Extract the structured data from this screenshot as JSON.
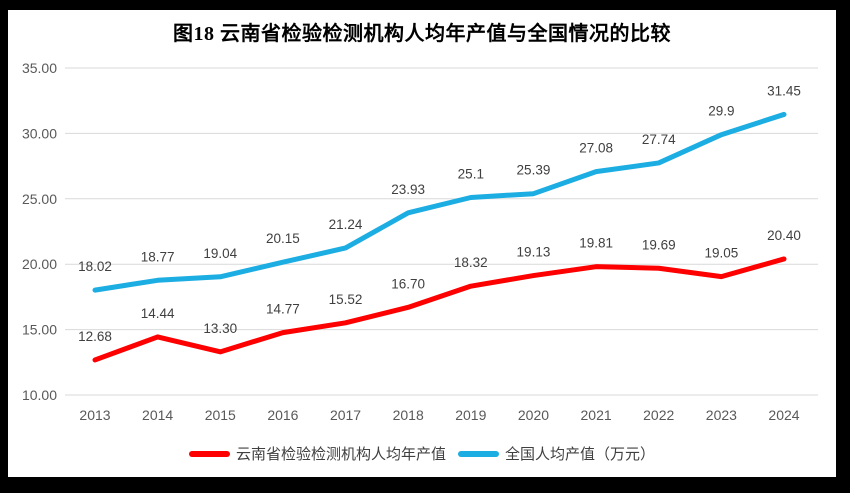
{
  "figure": {
    "title": "图18  云南省检验检测机构人均年产值与全国情况的比较"
  },
  "chart_data": {
    "type": "line",
    "title": "图18  云南省检验检测机构人均年产值与全国情况的比较",
    "categories": [
      "2013",
      "2014",
      "2015",
      "2016",
      "2017",
      "2018",
      "2019",
      "2020",
      "2021",
      "2022",
      "2023",
      "2024"
    ],
    "series": [
      {
        "name": "云南省检验检测机构人均年产值",
        "color": "#ff0000",
        "values": [
          12.68,
          14.44,
          13.3,
          14.77,
          15.52,
          16.7,
          18.32,
          19.13,
          19.81,
          19.69,
          19.05,
          20.4
        ],
        "labels": [
          "12.68",
          "14.44",
          "13.30",
          "14.77",
          "15.52",
          "16.70",
          "18.32",
          "19.13",
          "19.81",
          "19.69",
          "19.05",
          "20.40"
        ]
      },
      {
        "name": "全国人均产值（万元）",
        "color": "#1cade2",
        "values": [
          18.02,
          18.77,
          19.04,
          20.15,
          21.24,
          23.93,
          25.1,
          25.39,
          27.08,
          27.74,
          29.9,
          31.45
        ],
        "labels": [
          "18.02",
          "18.77",
          "19.04",
          "20.15",
          "21.24",
          "23.93",
          "25.1",
          "25.39",
          "27.08",
          "27.74",
          "29.9",
          "31.45"
        ]
      }
    ],
    "xlabel": "",
    "ylabel": "",
    "ylim": [
      10,
      35
    ],
    "yticks": [
      "10.00",
      "15.00",
      "20.00",
      "25.00",
      "30.00",
      "35.00"
    ],
    "grid": true,
    "legend_position": "bottom",
    "colors": {
      "background": "#000000",
      "panel": "#ffffff",
      "gridline": "#d9d9d9",
      "tick_text": "#595959",
      "data_label_text": "#404040"
    }
  }
}
